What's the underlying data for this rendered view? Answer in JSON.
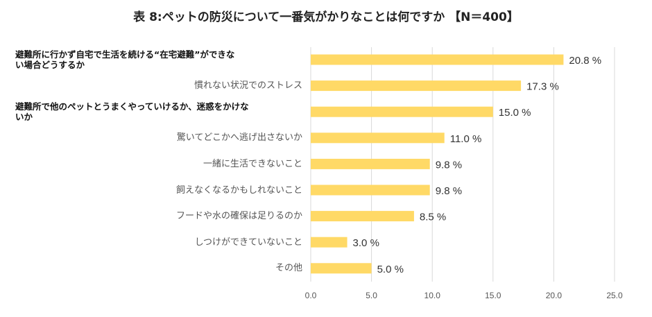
{
  "chart_data": {
    "type": "bar",
    "orientation": "horizontal",
    "title": "表 8:ペットの防災について一番気がかりなことは何ですか 【N＝400】",
    "categories": [
      "避難所に行かず自宅で生活を続ける“在宅避難”ができない場合どうするか",
      "慣れない状況でのストレス",
      "避難所で他のペットとうまくやっていけるか、迷惑をかけないか",
      "驚いてどこかへ逃げ出さないか",
      "一緒に生活できないこと",
      "飼えなくなるかもしれないこと",
      "フード や水の確保は足りるのか",
      "しつけができていないこと",
      "その他"
    ],
    "category_lines": [
      [
        "避難所に行かず自宅で生活を続ける“在宅避難”ができな",
        "い場合どうするか"
      ],
      [
        "慣れない状況でのストレス"
      ],
      [
        "避難所で他のペットとうまくやっていけるか、迷惑をかけな",
        "いか"
      ],
      [
        "驚いてどこかへ逃げ出さないか"
      ],
      [
        "一緒に生活できないこと"
      ],
      [
        "飼えなくなるかもしれないこと"
      ],
      [
        "フードや水の確保は足りるのか"
      ],
      [
        "しつけができていないこと"
      ],
      [
        "その他"
      ]
    ],
    "emphasized": [
      true,
      false,
      true,
      false,
      false,
      false,
      false,
      false,
      false
    ],
    "values": [
      20.8,
      17.3,
      15.0,
      11.0,
      9.8,
      9.8,
      8.5,
      3.0,
      5.0
    ],
    "data_labels": [
      "20.8 %",
      "17.3 %",
      "15.0 %",
      "11.0 %",
      "9.8 %",
      "9.8 %",
      "8.5 %",
      "3.0 %",
      "5.0 %"
    ],
    "xlim": [
      0,
      25
    ],
    "xticks": [
      "0.0",
      "5.0",
      "10.0",
      "15.0",
      "20.0",
      "25.0"
    ],
    "grid": true,
    "bar_color": "#FFD966",
    "legend": "none"
  }
}
